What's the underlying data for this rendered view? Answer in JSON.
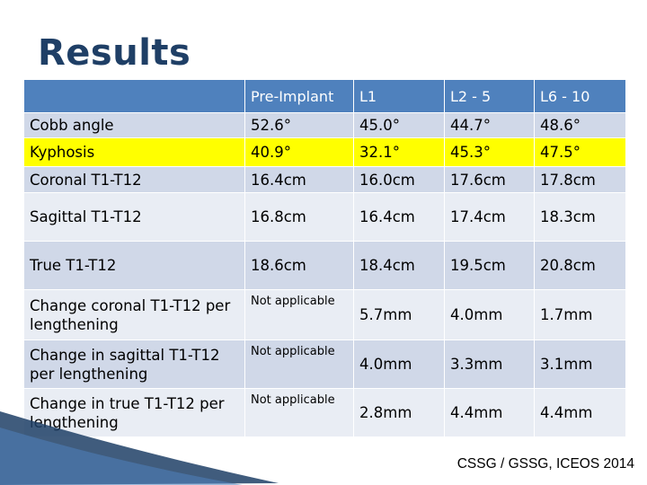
{
  "slide": {
    "title": "Results",
    "footer": "CSSG / GSSG, ICEOS 2014"
  },
  "table": {
    "headers": [
      "",
      "Pre-Implant",
      "L1",
      "L2 - 5",
      "L6 - 10"
    ],
    "rows": [
      {
        "label": "Cobb angle",
        "values": [
          "52.6°",
          "45.0°",
          "44.7°",
          "48.6°"
        ]
      },
      {
        "label": "Kyphosis",
        "values": [
          "40.9°",
          "32.1°",
          "45.3°",
          "47.5°"
        ]
      },
      {
        "label": "Coronal T1-T12",
        "values": [
          "16.4cm",
          "16.0cm",
          "17.6cm",
          "17.8cm"
        ]
      },
      {
        "label": "Sagittal T1-T12",
        "values": [
          "16.8cm",
          "16.4cm",
          "17.4cm",
          "18.3cm"
        ]
      },
      {
        "label": "True T1-T12",
        "values": [
          "18.6cm",
          "18.4cm",
          "19.5cm",
          "20.8cm"
        ]
      },
      {
        "label": "Change coronal T1-T12 per lengthening",
        "values": [
          "Not applicable",
          "5.7mm",
          "4.0mm",
          "1.7mm"
        ]
      },
      {
        "label": "Change in sagittal T1-T12 per lengthening",
        "values": [
          "Not applicable",
          "4.0mm",
          "3.3mm",
          "3.1mm"
        ]
      },
      {
        "label": "Change in true T1-T12 per lengthening",
        "values": [
          "Not applicable",
          "2.8mm",
          "4.4mm",
          "4.4mm"
        ]
      }
    ]
  },
  "colors": {
    "header_bg": "#4f81bd",
    "row_dark": "#d0d8e8",
    "row_light": "#e9edf4",
    "highlight": "#ffff00",
    "title": "#1f3f66"
  }
}
